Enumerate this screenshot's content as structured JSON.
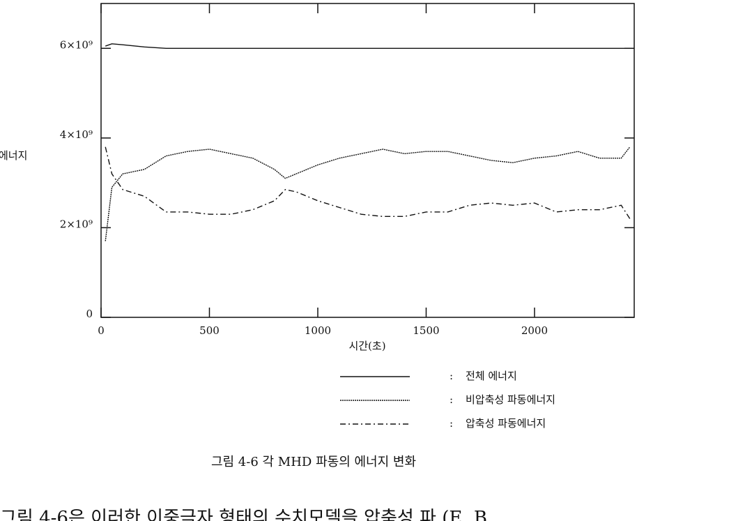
{
  "chart_data": {
    "type": "line",
    "xlabel": "시간(초)",
    "ylabel": "에너지",
    "xlim": [
      0,
      2460
    ],
    "ylim": [
      0,
      7000000000.0
    ],
    "xticks": [
      0,
      500,
      1000,
      1500,
      2000
    ],
    "yticks": [
      0,
      {
        "value": 2000000000.0,
        "label": "2×10⁹"
      },
      {
        "value": 4000000000.0,
        "label": "4×10⁹"
      },
      {
        "value": 6000000000.0,
        "label": "6×10⁹"
      }
    ],
    "x": [
      20,
      50,
      100,
      200,
      300,
      400,
      500,
      600,
      700,
      800,
      850,
      900,
      1000,
      1100,
      1200,
      1300,
      1400,
      1500,
      1600,
      1700,
      1800,
      1900,
      2000,
      2100,
      2200,
      2300,
      2400,
      2440
    ],
    "series": [
      {
        "name": "전체 에너지",
        "color": "#111111",
        "dash": "none",
        "values": [
          6050000000.0,
          6100000000.0,
          6080000000.0,
          6030000000.0,
          6000000000.0,
          6000000000.0,
          6000000000.0,
          6000000000.0,
          6000000000.0,
          6000000000.0,
          6000000000.0,
          6000000000.0,
          6000000000.0,
          6000000000.0,
          6000000000.0,
          6000000000.0,
          6000000000.0,
          6000000000.0,
          6000000000.0,
          6000000000.0,
          6000000000.0,
          6000000000.0,
          6000000000.0,
          6000000000.0,
          6000000000.0,
          6000000000.0,
          6000000000.0,
          6000000000.0
        ]
      },
      {
        "name": "비압축성 파동에너지",
        "color": "#111111",
        "dash": "2,1",
        "values": [
          1700000000.0,
          2900000000.0,
          3200000000.0,
          3300000000.0,
          3600000000.0,
          3700000000.0,
          3750000000.0,
          3650000000.0,
          3550000000.0,
          3300000000.0,
          3100000000.0,
          3200000000.0,
          3400000000.0,
          3550000000.0,
          3650000000.0,
          3750000000.0,
          3650000000.0,
          3700000000.0,
          3700000000.0,
          3600000000.0,
          3500000000.0,
          3450000000.0,
          3550000000.0,
          3600000000.0,
          3700000000.0,
          3550000000.0,
          3550000000.0,
          3800000000.0
        ]
      },
      {
        "name": "압축성 파동에너지",
        "color": "#111111",
        "dash": "8,4,2,4",
        "values": [
          3800000000.0,
          3200000000.0,
          2850000000.0,
          2700000000.0,
          2350000000.0,
          2350000000.0,
          2300000000.0,
          2300000000.0,
          2400000000.0,
          2600000000.0,
          2850000000.0,
          2800000000.0,
          2600000000.0,
          2450000000.0,
          2300000000.0,
          2250000000.0,
          2250000000.0,
          2350000000.0,
          2350000000.0,
          2500000000.0,
          2550000000.0,
          2500000000.0,
          2550000000.0,
          2350000000.0,
          2400000000.0,
          2400000000.0,
          2500000000.0,
          2200000000.0
        ]
      }
    ],
    "legend_separator": ":",
    "caption": "그림 4-6  각 MHD 파동의 에너지 변화",
    "body_text": "그림 4-6은 이러한 이중극자 형태의 수치모델을 압축성 파 (E, B"
  }
}
